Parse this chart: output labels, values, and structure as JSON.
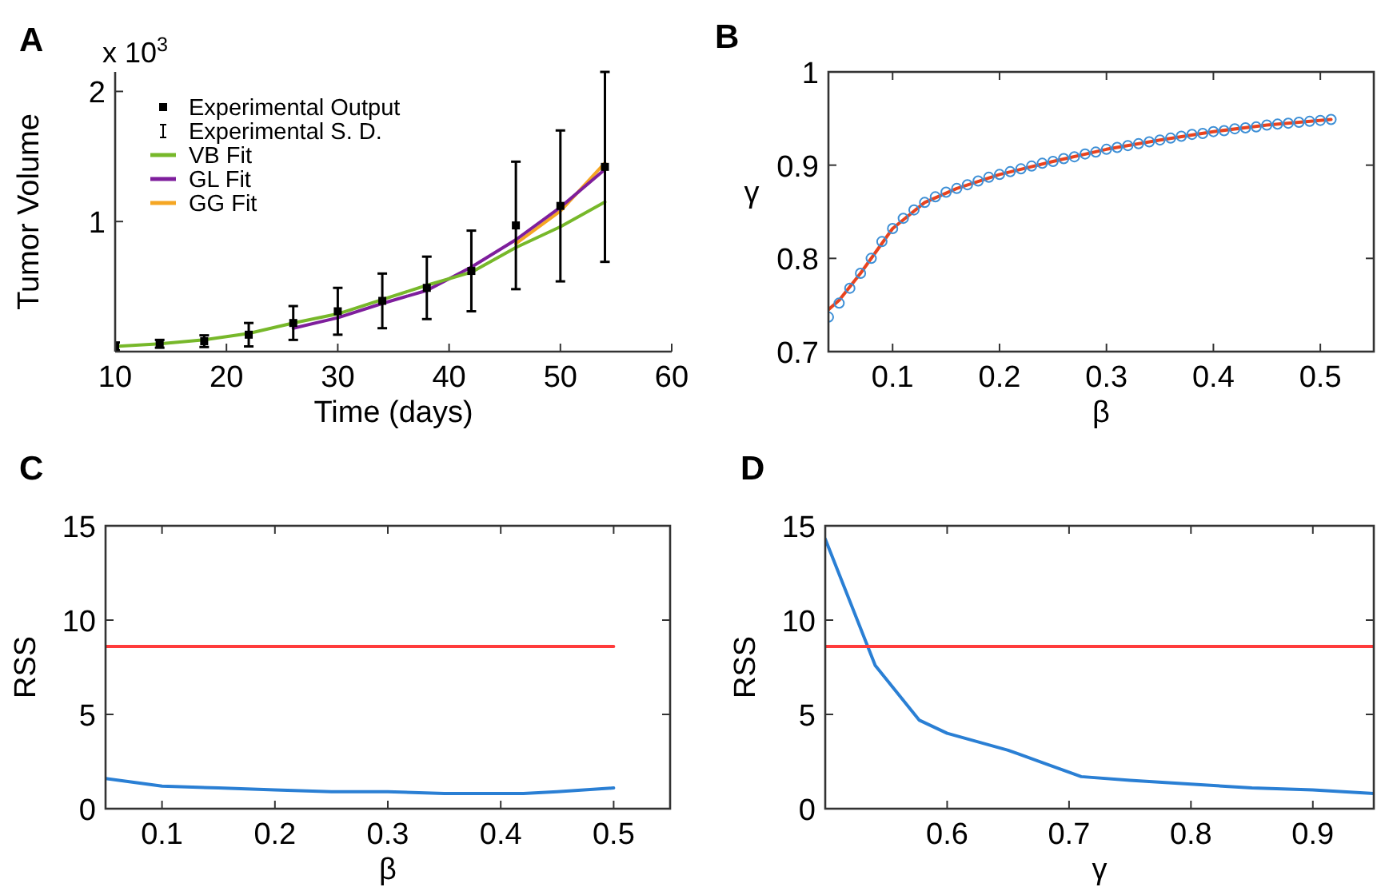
{
  "chart_data": [
    {
      "type": "line",
      "title": "A",
      "xlabel": "Time (days)",
      "ylabel": "Tumor Volume",
      "annotations": [
        "x 10$^{3}$",
        "Experimental S. D."
      ],
      "xlim": [
        10,
        60
      ],
      "xticks": [
        10,
        20,
        30,
        40,
        50,
        60
      ],
      "ylim": [
        0,
        2.15
      ],
      "yticks": [
        1,
        2
      ],
      "legend": "top left",
      "series": [
        {
          "name": "Experimental Output",
          "type": "scatter",
          "marker": "square",
          "color": "#000000",
          "x": [
            10,
            14,
            18,
            22,
            26,
            30,
            34,
            38,
            42,
            46,
            50,
            54
          ],
          "values": [
            0.04,
            0.06,
            0.08,
            0.13,
            0.22,
            0.31,
            0.39,
            0.49,
            0.62,
            0.97,
            1.12,
            1.42
          ],
          "errors": [
            0.03,
            0.03,
            0.045,
            0.09,
            0.13,
            0.18,
            0.21,
            0.24,
            0.31,
            0.49,
            0.58,
            0.73
          ]
        },
        {
          "name": "VB Fit",
          "color": "#77b82a",
          "x": [
            10,
            14,
            18,
            22,
            26,
            30,
            34,
            38,
            42,
            46,
            50,
            54
          ],
          "values": [
            0.04,
            0.06,
            0.09,
            0.14,
            0.22,
            0.29,
            0.4,
            0.51,
            0.61,
            0.8,
            0.96,
            1.15
          ]
        },
        {
          "name": "GL Fit",
          "color": "#7e1e9c",
          "x": [
            26,
            30,
            34,
            38,
            42,
            46,
            50,
            54
          ],
          "values": [
            0.18,
            0.26,
            0.37,
            0.47,
            0.65,
            0.86,
            1.11,
            1.4
          ]
        },
        {
          "name": "GG Fit",
          "color": "#f5a623",
          "x": [
            46,
            50,
            54
          ],
          "values": [
            0.83,
            1.08,
            1.45
          ]
        }
      ]
    },
    {
      "type": "line",
      "title": "B",
      "xlabel": "β",
      "ylabel": "γ",
      "xlim": [
        0.04,
        0.55
      ],
      "xticks": [
        0.1,
        0.2,
        0.3,
        0.4,
        0.5
      ],
      "ylim": [
        0.7,
        1
      ],
      "yticks": [
        0.7,
        0.8,
        0.9,
        1
      ],
      "series": [
        {
          "color": "#e8431f",
          "x": [
            0.04,
            0.05,
            0.07,
            0.1,
            0.13,
            0.16,
            0.2,
            0.25,
            0.3,
            0.35,
            0.4,
            0.45,
            0.51
          ],
          "values": [
            0.745,
            0.755,
            0.784,
            0.832,
            0.86,
            0.875,
            0.89,
            0.904,
            0.917,
            0.927,
            0.936,
            0.943,
            0.949
          ]
        },
        {
          "type": "scatter",
          "marker": "circle",
          "color": "#3d8fd6",
          "x": [
            0.04,
            0.05,
            0.06,
            0.07,
            0.08,
            0.09,
            0.1,
            0.11,
            0.12,
            0.13,
            0.14,
            0.15,
            0.16,
            0.17,
            0.18,
            0.19,
            0.2,
            0.21,
            0.22,
            0.23,
            0.24,
            0.25,
            0.26,
            0.27,
            0.28,
            0.29,
            0.3,
            0.31,
            0.32,
            0.33,
            0.34,
            0.35,
            0.36,
            0.37,
            0.38,
            0.39,
            0.4,
            0.41,
            0.42,
            0.43,
            0.44,
            0.45,
            0.46,
            0.47,
            0.48,
            0.49,
            0.5,
            0.51
          ],
          "values": [
            0.737,
            0.752,
            0.768,
            0.784,
            0.8,
            0.818,
            0.832,
            0.843,
            0.852,
            0.86,
            0.866,
            0.871,
            0.875,
            0.879,
            0.883,
            0.887,
            0.89,
            0.893,
            0.896,
            0.899,
            0.902,
            0.904,
            0.907,
            0.909,
            0.912,
            0.914,
            0.917,
            0.919,
            0.921,
            0.923,
            0.925,
            0.927,
            0.929,
            0.931,
            0.933,
            0.934,
            0.936,
            0.937,
            0.939,
            0.94,
            0.941,
            0.943,
            0.944,
            0.945,
            0.946,
            0.947,
            0.948,
            0.949
          ]
        }
      ]
    },
    {
      "type": "line",
      "title": "C",
      "xlabel": "β",
      "ylabel": "RSS",
      "xlim": [
        0.05,
        0.55
      ],
      "xticks": [
        0.1,
        0.2,
        0.3,
        0.4,
        0.5
      ],
      "ylim": [
        0,
        15
      ],
      "yticks": [
        0,
        5,
        10,
        15
      ],
      "series": [
        {
          "color": "#ff3b3b",
          "x": [
            0.05,
            0.5
          ],
          "values": [
            8.6,
            8.6
          ]
        },
        {
          "color": "#2a7fd4",
          "x": [
            0.05,
            0.075,
            0.1,
            0.15,
            0.2,
            0.25,
            0.3,
            0.35,
            0.4,
            0.42,
            0.45,
            0.5
          ],
          "values": [
            1.6,
            1.4,
            1.2,
            1.1,
            1,
            0.9,
            0.9,
            0.8,
            0.8,
            0.8,
            0.9,
            1.1
          ]
        }
      ]
    },
    {
      "type": "line",
      "title": "D",
      "xlabel": "γ",
      "ylabel": "RSS",
      "xlim": [
        0.5,
        0.95
      ],
      "xticks": [
        0.6,
        0.7,
        0.8,
        0.9
      ],
      "ylim": [
        0,
        15
      ],
      "yticks": [
        0,
        5,
        10,
        15
      ],
      "series": [
        {
          "color": "#ff3b3b",
          "x": [
            0.5,
            0.95
          ],
          "values": [
            8.6,
            8.6
          ]
        },
        {
          "color": "#2a7fd4",
          "x": [
            0.5,
            0.541,
            0.577,
            0.6,
            0.65,
            0.68,
            0.71,
            0.75,
            0.8,
            0.85,
            0.9,
            0.95
          ],
          "values": [
            14.3,
            7.6,
            4.7,
            4,
            3.1,
            2.4,
            1.7,
            1.5,
            1.3,
            1.1,
            1,
            0.8
          ]
        }
      ]
    }
  ]
}
